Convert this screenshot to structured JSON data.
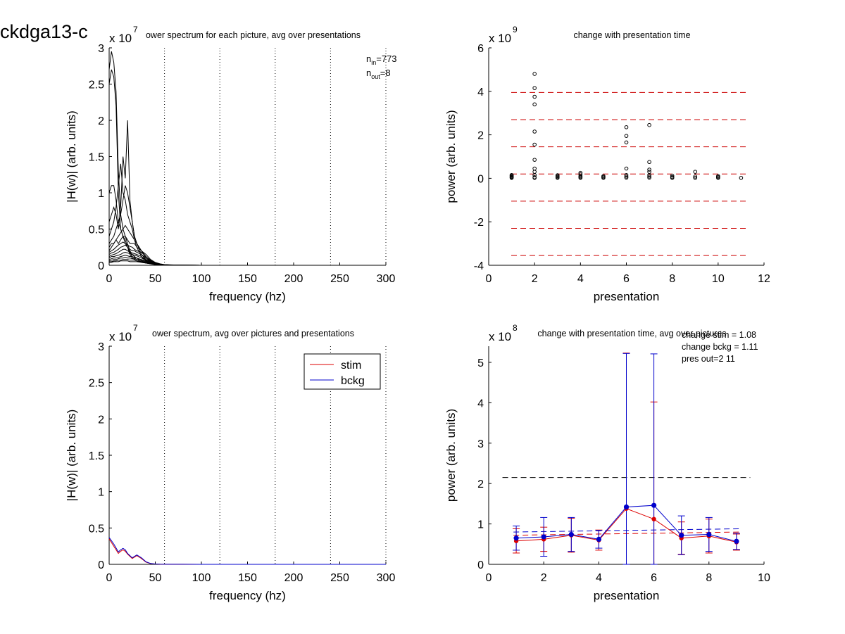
{
  "figure": {
    "title": "ckdga13-c"
  },
  "chart_data": [
    {
      "id": "p1",
      "type": "line",
      "title": "ower spectrum for each picture, avg over presentations",
      "xlabel": "frequency (hz)",
      "ylabel": "|H(w)| (arb. units)",
      "xlim": [
        0,
        300
      ],
      "ylim": [
        0,
        3
      ],
      "xticks": [
        "0",
        "50",
        "100",
        "150",
        "200",
        "250",
        "300"
      ],
      "yticks": [
        "0",
        "0.5",
        "1",
        "1.5",
        "2",
        "2.5",
        "3"
      ],
      "yexp_base": "x 10",
      "yexp_power": "7",
      "vlines": [
        60,
        120,
        180,
        240,
        300
      ],
      "annotation": {
        "n_in_base": "n",
        "n_in_sub": "in",
        "n_in_val": "=773",
        "n_out_base": "n",
        "n_out_sub": "out",
        "n_out_val": "=8"
      },
      "color": "#000000",
      "x": [
        0,
        2.5,
        5,
        7.5,
        10,
        12.5,
        15,
        17.5,
        20,
        22.5,
        25,
        27.5,
        30,
        35,
        40,
        45,
        50,
        55,
        60,
        70,
        80,
        100,
        150,
        200,
        250,
        300
      ],
      "series": [
        {
          "values": [
            2.7,
            2.95,
            2.8,
            2.4,
            1.3,
            0.7,
            0.5,
            0.4,
            0.3,
            0.2,
            0.15,
            0.12,
            0.1,
            0.06,
            0.04,
            0.02,
            0.01,
            0.005,
            0.003,
            0.002,
            0.001,
            0,
            0,
            0,
            0,
            0
          ]
        },
        {
          "values": [
            2.5,
            2.7,
            2.6,
            2.2,
            1.0,
            0.5,
            0.4,
            0.35,
            0.25,
            0.18,
            0.12,
            0.1,
            0.08,
            0.05,
            0.03,
            0.02,
            0.01,
            0.005,
            0.002,
            0.001,
            0,
            0,
            0,
            0,
            0,
            0
          ]
        },
        {
          "values": [
            1.0,
            1.1,
            1.1,
            0.9,
            0.6,
            0.5,
            0.4,
            0.3,
            0.25,
            0.15,
            0.1,
            0.08,
            0.06,
            0.04,
            0.03,
            0.02,
            0.01,
            0.005,
            0.002,
            0.001,
            0,
            0,
            0,
            0,
            0,
            0
          ]
        },
        {
          "values": [
            0.6,
            0.7,
            0.8,
            0.7,
            0.5,
            0.8,
            1.5,
            1.2,
            2.0,
            0.9,
            0.6,
            0.4,
            0.3,
            0.15,
            0.08,
            0.04,
            0.02,
            0.01,
            0.005,
            0.002,
            0.001,
            0,
            0,
            0,
            0,
            0
          ]
        },
        {
          "values": [
            0.4,
            0.5,
            0.6,
            0.8,
            1.1,
            1.4,
            1.0,
            0.9,
            0.7,
            0.6,
            0.5,
            0.35,
            0.25,
            0.12,
            0.06,
            0.03,
            0.015,
            0.008,
            0.004,
            0.002,
            0.001,
            0,
            0,
            0,
            0,
            0
          ]
        },
        {
          "values": [
            0.3,
            0.35,
            0.4,
            0.5,
            0.6,
            0.7,
            0.9,
            1.1,
            1.0,
            0.8,
            0.6,
            0.4,
            0.3,
            0.2,
            0.1,
            0.05,
            0.02,
            0.01,
            0.005,
            0.002,
            0.001,
            0,
            0,
            0,
            0,
            0
          ]
        },
        {
          "values": [
            0.25,
            0.3,
            0.3,
            0.35,
            0.4,
            0.45,
            0.5,
            0.55,
            0.5,
            0.45,
            0.4,
            0.35,
            0.3,
            0.2,
            0.12,
            0.06,
            0.03,
            0.015,
            0.008,
            0.004,
            0.002,
            0,
            0,
            0,
            0,
            0
          ]
        },
        {
          "values": [
            0.2,
            0.25,
            0.3,
            0.35,
            0.3,
            0.35,
            0.4,
            0.4,
            0.35,
            0.3,
            0.3,
            0.3,
            0.25,
            0.2,
            0.15,
            0.08,
            0.04,
            0.02,
            0.01,
            0.005,
            0.002,
            0,
            0,
            0,
            0,
            0
          ]
        },
        {
          "values": [
            0.18,
            0.2,
            0.22,
            0.25,
            0.28,
            0.3,
            0.32,
            0.3,
            0.28,
            0.26,
            0.25,
            0.22,
            0.2,
            0.18,
            0.12,
            0.07,
            0.03,
            0.015,
            0.007,
            0.003,
            0.001,
            0,
            0,
            0,
            0,
            0
          ]
        },
        {
          "values": [
            0.15,
            0.17,
            0.18,
            0.2,
            0.22,
            0.25,
            0.26,
            0.28,
            0.25,
            0.22,
            0.2,
            0.2,
            0.18,
            0.15,
            0.1,
            0.06,
            0.03,
            0.015,
            0.007,
            0.003,
            0.001,
            0,
            0,
            0,
            0,
            0
          ]
        },
        {
          "values": [
            0.12,
            0.14,
            0.15,
            0.16,
            0.18,
            0.2,
            0.22,
            0.22,
            0.2,
            0.18,
            0.17,
            0.16,
            0.15,
            0.12,
            0.08,
            0.05,
            0.025,
            0.012,
            0.006,
            0.003,
            0.001,
            0,
            0,
            0,
            0,
            0
          ]
        },
        {
          "values": [
            0.1,
            0.12,
            0.12,
            0.13,
            0.14,
            0.15,
            0.17,
            0.18,
            0.17,
            0.16,
            0.15,
            0.14,
            0.13,
            0.1,
            0.07,
            0.04,
            0.02,
            0.01,
            0.005,
            0.002,
            0.001,
            0,
            0,
            0,
            0,
            0
          ]
        },
        {
          "values": [
            0.08,
            0.09,
            0.1,
            0.1,
            0.11,
            0.12,
            0.13,
            0.14,
            0.13,
            0.12,
            0.12,
            0.11,
            0.1,
            0.08,
            0.06,
            0.035,
            0.018,
            0.009,
            0.004,
            0.002,
            0.001,
            0,
            0,
            0,
            0,
            0
          ]
        },
        {
          "values": [
            0.06,
            0.07,
            0.08,
            0.08,
            0.09,
            0.1,
            0.1,
            0.11,
            0.1,
            0.1,
            0.09,
            0.09,
            0.08,
            0.07,
            0.05,
            0.03,
            0.015,
            0.007,
            0.003,
            0.001,
            0,
            0,
            0,
            0,
            0,
            0
          ]
        },
        {
          "values": [
            0.05,
            0.05,
            0.06,
            0.06,
            0.07,
            0.07,
            0.08,
            0.08,
            0.08,
            0.07,
            0.07,
            0.07,
            0.06,
            0.05,
            0.04,
            0.025,
            0.012,
            0.006,
            0.003,
            0.001,
            0,
            0,
            0,
            0,
            0,
            0
          ]
        },
        {
          "values": [
            0.04,
            0.04,
            0.05,
            0.05,
            0.05,
            0.06,
            0.06,
            0.06,
            0.06,
            0.05,
            0.05,
            0.05,
            0.05,
            0.04,
            0.03,
            0.02,
            0.01,
            0.005,
            0.002,
            0.001,
            0,
            0,
            0,
            0,
            0,
            0
          ]
        }
      ]
    },
    {
      "id": "p2",
      "type": "scatter",
      "title": "change with presentation time",
      "xlabel": "presentation",
      "ylabel": "power (arb. units)",
      "xlim": [
        0,
        12
      ],
      "ylim": [
        -4,
        6
      ],
      "xticks": [
        "0",
        "2",
        "4",
        "6",
        "8",
        "10",
        "12"
      ],
      "yticks": [
        "-4",
        "-2",
        "0",
        "2",
        "4",
        "6"
      ],
      "yexp_base": "x 10",
      "yexp_power": "9",
      "hlines": {
        "color": "#cc0000",
        "x_range": [
          0,
          11.3
        ],
        "values": [
          3.95,
          2.7,
          1.45,
          0.2,
          -1.05,
          -2.3,
          -3.55
        ]
      },
      "points": [
        {
          "x": 1,
          "y": 0.02
        },
        {
          "x": 1,
          "y": 0.05
        },
        {
          "x": 1,
          "y": 0.08
        },
        {
          "x": 1,
          "y": 0.12
        },
        {
          "x": 1,
          "y": 0.15
        },
        {
          "x": 2,
          "y": 4.8
        },
        {
          "x": 2,
          "y": 4.15
        },
        {
          "x": 2,
          "y": 3.75
        },
        {
          "x": 2,
          "y": 3.4
        },
        {
          "x": 2,
          "y": 2.15
        },
        {
          "x": 2,
          "y": 1.55
        },
        {
          "x": 2,
          "y": 0.85
        },
        {
          "x": 2,
          "y": 0.45
        },
        {
          "x": 2,
          "y": 0.3
        },
        {
          "x": 2,
          "y": 0.15
        },
        {
          "x": 2,
          "y": 0.05
        },
        {
          "x": 2,
          "y": 0.02
        },
        {
          "x": 3,
          "y": 0.02
        },
        {
          "x": 3,
          "y": 0.06
        },
        {
          "x": 3,
          "y": 0.1
        },
        {
          "x": 3,
          "y": 0.14
        },
        {
          "x": 4,
          "y": 0.02
        },
        {
          "x": 4,
          "y": 0.06
        },
        {
          "x": 4,
          "y": 0.1
        },
        {
          "x": 4,
          "y": 0.18
        },
        {
          "x": 4,
          "y": 0.25
        },
        {
          "x": 5,
          "y": 0.02
        },
        {
          "x": 5,
          "y": 0.06
        },
        {
          "x": 5,
          "y": 0.1
        },
        {
          "x": 6,
          "y": 2.35
        },
        {
          "x": 6,
          "y": 1.95
        },
        {
          "x": 6,
          "y": 1.65
        },
        {
          "x": 6,
          "y": 0.45
        },
        {
          "x": 6,
          "y": 0.15
        },
        {
          "x": 6,
          "y": 0.08
        },
        {
          "x": 6,
          "y": 0.03
        },
        {
          "x": 7,
          "y": 2.45
        },
        {
          "x": 7,
          "y": 0.75
        },
        {
          "x": 7,
          "y": 0.4
        },
        {
          "x": 7,
          "y": 0.3
        },
        {
          "x": 7,
          "y": 0.15
        },
        {
          "x": 7,
          "y": 0.08
        },
        {
          "x": 7,
          "y": 0.03
        },
        {
          "x": 8,
          "y": 0.02
        },
        {
          "x": 8,
          "y": 0.06
        },
        {
          "x": 8,
          "y": 0.12
        },
        {
          "x": 9,
          "y": 0.3
        },
        {
          "x": 9,
          "y": 0.08
        },
        {
          "x": 9,
          "y": 0.02
        },
        {
          "x": 10,
          "y": 0.02
        },
        {
          "x": 10,
          "y": 0.06
        },
        {
          "x": 10,
          "y": 0.1
        },
        {
          "x": 11,
          "y": 0.02
        }
      ]
    },
    {
      "id": "p3",
      "type": "line",
      "title": "ower spectrum, avg over pictures and presentations",
      "xlabel": "frequency (hz)",
      "ylabel": "|H(w)| (arb. units)",
      "xlim": [
        0,
        300
      ],
      "ylim": [
        0,
        3
      ],
      "xticks": [
        "0",
        "50",
        "100",
        "150",
        "200",
        "250",
        "300"
      ],
      "yticks": [
        "0",
        "0.5",
        "1",
        "1.5",
        "2",
        "2.5",
        "3"
      ],
      "yexp_base": "x 10",
      "yexp_power": "7",
      "vlines": [
        60,
        120,
        180,
        240,
        300
      ],
      "legend": {
        "position": "top-right"
      },
      "x": [
        0,
        5,
        10,
        12.5,
        15,
        17.5,
        20,
        25,
        30,
        35,
        40,
        45,
        50,
        55,
        60,
        80,
        100,
        150,
        200,
        250,
        300
      ],
      "series": [
        {
          "name": "stim",
          "color": "#dd0000",
          "values": [
            0.35,
            0.25,
            0.15,
            0.18,
            0.2,
            0.18,
            0.14,
            0.08,
            0.12,
            0.08,
            0.03,
            0.01,
            0.005,
            0.002,
            0.001,
            0.001,
            0,
            0,
            0,
            0,
            0
          ]
        },
        {
          "name": "bckg",
          "color": "#0000cc",
          "values": [
            0.37,
            0.28,
            0.17,
            0.2,
            0.22,
            0.2,
            0.15,
            0.09,
            0.13,
            0.09,
            0.035,
            0.012,
            0.005,
            0.002,
            0.001,
            0.001,
            0,
            0,
            0,
            0,
            0
          ]
        }
      ]
    },
    {
      "id": "p4",
      "type": "line",
      "title": "change with presentation time, avg over pictures",
      "xlabel": "presentation",
      "ylabel": "power (arb. units)",
      "xlim": [
        0,
        10
      ],
      "ylim": [
        0,
        5.4
      ],
      "xticks": [
        "0",
        "2",
        "4",
        "6",
        "8",
        "10"
      ],
      "yticks": [
        "0",
        "1",
        "2",
        "3",
        "4",
        "5"
      ],
      "yexp_base": "x 10",
      "yexp_power": "8",
      "stats": [
        "change stim = 1.08",
        "change bckg = 1.11",
        "pres out=2 11"
      ],
      "black_dashed": {
        "y": 2.15,
        "x_range": [
          0.5,
          9.5
        ]
      },
      "series": [
        {
          "name": "stim",
          "color": "#dd0000",
          "x": [
            1,
            2,
            3,
            4,
            5,
            6,
            7,
            8,
            9
          ],
          "values": [
            0.58,
            0.62,
            0.72,
            0.6,
            1.38,
            1.12,
            0.65,
            0.7,
            0.55
          ],
          "err": [
            0.3,
            0.3,
            0.42,
            0.25,
            3.85,
            2.9,
            0.4,
            0.42,
            0.2
          ],
          "trend": [
            0.72,
            0.8
          ]
        },
        {
          "name": "bckg",
          "color": "#0000cc",
          "x": [
            1,
            2,
            3,
            4,
            5,
            6,
            7,
            8,
            9
          ],
          "values": [
            0.65,
            0.68,
            0.74,
            0.62,
            1.42,
            1.46,
            0.72,
            0.74,
            0.57
          ],
          "err": [
            0.3,
            0.48,
            0.42,
            0.22,
            3.8,
            3.75,
            0.48,
            0.42,
            0.2
          ],
          "trend": [
            0.8,
            0.88
          ]
        }
      ]
    }
  ]
}
